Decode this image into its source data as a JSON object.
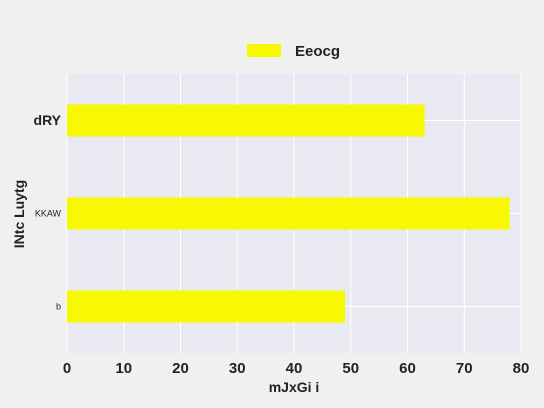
{
  "chart_data": {
    "type": "bar",
    "orientation": "horizontal",
    "title": "",
    "xlabel": "mJxGi i",
    "ylabel": "INtc Luytg",
    "categories": [
      "dRY",
      "KKAW",
      "b"
    ],
    "series": [
      {
        "name": "Eeocg",
        "values": [
          63,
          78,
          49
        ],
        "color": "#f8f800"
      }
    ],
    "xlim": [
      0,
      80
    ],
    "xticks": [
      "0",
      "10",
      "20",
      "30",
      "40",
      "50",
      "60",
      "70",
      "80"
    ],
    "grid": true,
    "legend": "top-center",
    "colors": {
      "background": "#f0f0f0",
      "plot_background": "#e9e9f1",
      "grid": "#ffffff",
      "bar": "#f8f800"
    }
  }
}
